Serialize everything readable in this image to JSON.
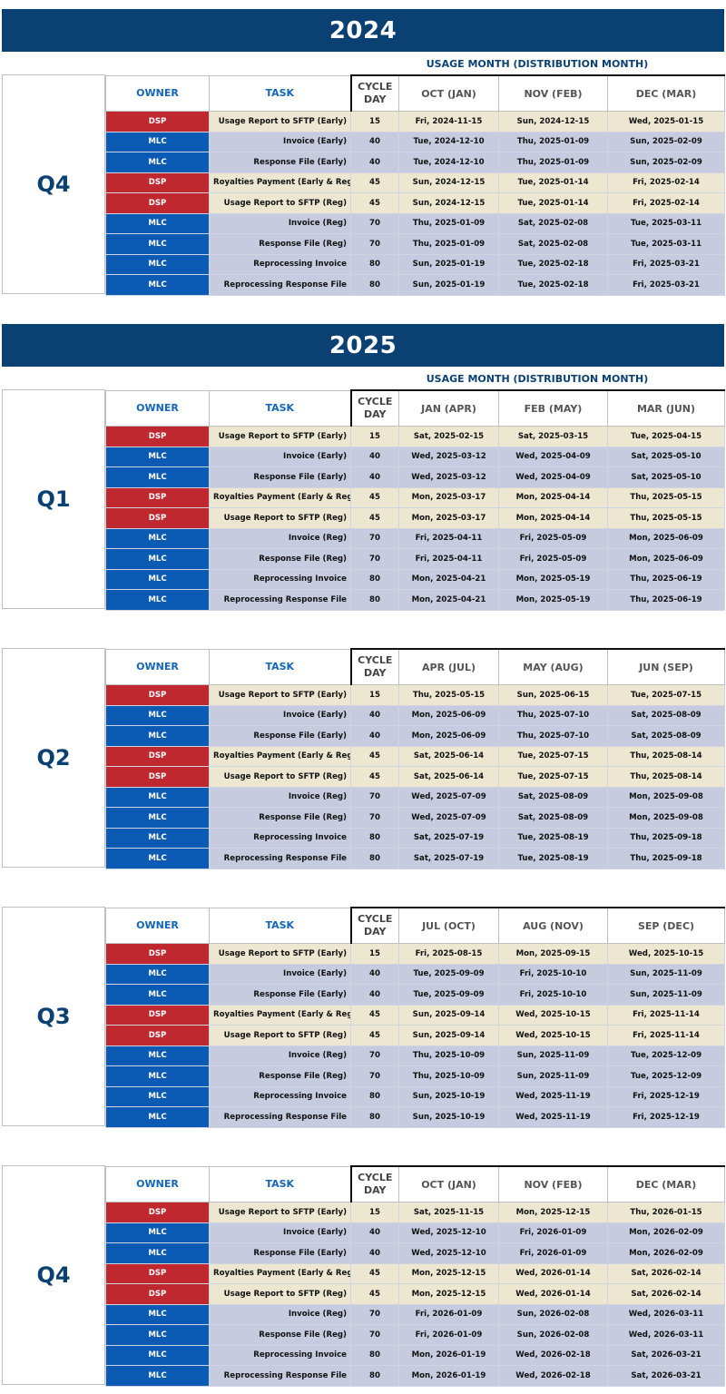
{
  "headers": {
    "owner": "OWNER",
    "task": "TASK",
    "cycle_line1": "CYCLE",
    "cycle_line2": "DAY"
  },
  "usage_label": "USAGE MONTH (DISTRIBUTION MONTH)",
  "colors": {
    "banner": "#0b4172",
    "dsp": "#c0282f",
    "mlc": "#0b5bb5",
    "dsp_row": "#ede7d2",
    "mlc_row": "#c6cbe0"
  },
  "years": [
    {
      "label": "2024"
    },
    {
      "label": "2025"
    }
  ],
  "quarters": [
    {
      "label": "Q4",
      "months": [
        "OCT (JAN)",
        "NOV (FEB)",
        "DEC (MAR)"
      ],
      "rows": [
        {
          "owner": "DSP",
          "task": "Usage Report to SFTP (Early)",
          "cycle": "15",
          "dates": [
            "Fri, 2024-11-15",
            "Sun, 2024-12-15",
            "Wed, 2025-01-15"
          ]
        },
        {
          "owner": "MLC",
          "task": "Invoice (Early)",
          "cycle": "40",
          "dates": [
            "Tue, 2024-12-10",
            "Thu, 2025-01-09",
            "Sun, 2025-02-09"
          ]
        },
        {
          "owner": "MLC",
          "task": "Response File (Early)",
          "cycle": "40",
          "dates": [
            "Tue, 2024-12-10",
            "Thu, 2025-01-09",
            "Sun, 2025-02-09"
          ]
        },
        {
          "owner": "DSP",
          "task": "Royalties Payment (Early & Reg)",
          "cycle": "45",
          "dates": [
            "Sun, 2024-12-15",
            "Tue, 2025-01-14",
            "Fri, 2025-02-14"
          ]
        },
        {
          "owner": "DSP",
          "task": "Usage Report to SFTP (Reg)",
          "cycle": "45",
          "dates": [
            "Sun, 2024-12-15",
            "Tue, 2025-01-14",
            "Fri, 2025-02-14"
          ]
        },
        {
          "owner": "MLC",
          "task": "Invoice (Reg)",
          "cycle": "70",
          "dates": [
            "Thu, 2025-01-09",
            "Sat, 2025-02-08",
            "Tue, 2025-03-11"
          ]
        },
        {
          "owner": "MLC",
          "task": "Response File (Reg)",
          "cycle": "70",
          "dates": [
            "Thu, 2025-01-09",
            "Sat, 2025-02-08",
            "Tue, 2025-03-11"
          ]
        },
        {
          "owner": "MLC",
          "task": "Reprocessing Invoice",
          "cycle": "80",
          "dates": [
            "Sun, 2025-01-19",
            "Tue, 2025-02-18",
            "Fri, 2025-03-21"
          ]
        },
        {
          "owner": "MLC",
          "task": "Reprocessing Response File",
          "cycle": "80",
          "dates": [
            "Sun, 2025-01-19",
            "Tue, 2025-02-18",
            "Fri, 2025-03-21"
          ]
        }
      ]
    },
    {
      "label": "Q1",
      "months": [
        "JAN (APR)",
        "FEB (MAY)",
        "MAR (JUN)"
      ],
      "rows": [
        {
          "owner": "DSP",
          "task": "Usage Report to SFTP (Early)",
          "cycle": "15",
          "dates": [
            "Sat, 2025-02-15",
            "Sat, 2025-03-15",
            "Tue, 2025-04-15"
          ]
        },
        {
          "owner": "MLC",
          "task": "Invoice (Early)",
          "cycle": "40",
          "dates": [
            "Wed, 2025-03-12",
            "Wed, 2025-04-09",
            "Sat, 2025-05-10"
          ]
        },
        {
          "owner": "MLC",
          "task": "Response File (Early)",
          "cycle": "40",
          "dates": [
            "Wed, 2025-03-12",
            "Wed, 2025-04-09",
            "Sat, 2025-05-10"
          ]
        },
        {
          "owner": "DSP",
          "task": "Royalties Payment (Early & Reg)",
          "cycle": "45",
          "dates": [
            "Mon, 2025-03-17",
            "Mon, 2025-04-14",
            "Thu, 2025-05-15"
          ]
        },
        {
          "owner": "DSP",
          "task": "Usage Report to SFTP (Reg)",
          "cycle": "45",
          "dates": [
            "Mon, 2025-03-17",
            "Mon, 2025-04-14",
            "Thu, 2025-05-15"
          ]
        },
        {
          "owner": "MLC",
          "task": "Invoice (Reg)",
          "cycle": "70",
          "dates": [
            "Fri, 2025-04-11",
            "Fri, 2025-05-09",
            "Mon, 2025-06-09"
          ]
        },
        {
          "owner": "MLC",
          "task": "Response File (Reg)",
          "cycle": "70",
          "dates": [
            "Fri, 2025-04-11",
            "Fri, 2025-05-09",
            "Mon, 2025-06-09"
          ]
        },
        {
          "owner": "MLC",
          "task": "Reprocessing Invoice",
          "cycle": "80",
          "dates": [
            "Mon, 2025-04-21",
            "Mon, 2025-05-19",
            "Thu, 2025-06-19"
          ]
        },
        {
          "owner": "MLC",
          "task": "Reprocessing Response File",
          "cycle": "80",
          "dates": [
            "Mon, 2025-04-21",
            "Mon, 2025-05-19",
            "Thu, 2025-06-19"
          ]
        }
      ]
    },
    {
      "label": "Q2",
      "months": [
        "APR (JUL)",
        "MAY (AUG)",
        "JUN (SEP)"
      ],
      "rows": [
        {
          "owner": "DSP",
          "task": "Usage Report to SFTP (Early)",
          "cycle": "15",
          "dates": [
            "Thu, 2025-05-15",
            "Sun, 2025-06-15",
            "Tue, 2025-07-15"
          ]
        },
        {
          "owner": "MLC",
          "task": "Invoice (Early)",
          "cycle": "40",
          "dates": [
            "Mon, 2025-06-09",
            "Thu, 2025-07-10",
            "Sat, 2025-08-09"
          ]
        },
        {
          "owner": "MLC",
          "task": "Response File (Early)",
          "cycle": "40",
          "dates": [
            "Mon, 2025-06-09",
            "Thu, 2025-07-10",
            "Sat, 2025-08-09"
          ]
        },
        {
          "owner": "DSP",
          "task": "Royalties Payment (Early & Reg)",
          "cycle": "45",
          "dates": [
            "Sat, 2025-06-14",
            "Tue, 2025-07-15",
            "Thu, 2025-08-14"
          ]
        },
        {
          "owner": "DSP",
          "task": "Usage Report to SFTP (Reg)",
          "cycle": "45",
          "dates": [
            "Sat, 2025-06-14",
            "Tue, 2025-07-15",
            "Thu, 2025-08-14"
          ]
        },
        {
          "owner": "MLC",
          "task": "Invoice (Reg)",
          "cycle": "70",
          "dates": [
            "Wed, 2025-07-09",
            "Sat, 2025-08-09",
            "Mon, 2025-09-08"
          ]
        },
        {
          "owner": "MLC",
          "task": "Response File (Reg)",
          "cycle": "70",
          "dates": [
            "Wed, 2025-07-09",
            "Sat, 2025-08-09",
            "Mon, 2025-09-08"
          ]
        },
        {
          "owner": "MLC",
          "task": "Reprocessing Invoice",
          "cycle": "80",
          "dates": [
            "Sat, 2025-07-19",
            "Tue, 2025-08-19",
            "Thu, 2025-09-18"
          ]
        },
        {
          "owner": "MLC",
          "task": "Reprocessing Response File",
          "cycle": "80",
          "dates": [
            "Sat, 2025-07-19",
            "Tue, 2025-08-19",
            "Thu, 2025-09-18"
          ]
        }
      ]
    },
    {
      "label": "Q3",
      "months": [
        "JUL (OCT)",
        "AUG (NOV)",
        "SEP (DEC)"
      ],
      "rows": [
        {
          "owner": "DSP",
          "task": "Usage Report to SFTP (Early)",
          "cycle": "15",
          "dates": [
            "Fri, 2025-08-15",
            "Mon, 2025-09-15",
            "Wed, 2025-10-15"
          ]
        },
        {
          "owner": "MLC",
          "task": "Invoice (Early)",
          "cycle": "40",
          "dates": [
            "Tue, 2025-09-09",
            "Fri, 2025-10-10",
            "Sun, 2025-11-09"
          ]
        },
        {
          "owner": "MLC",
          "task": "Response File (Early)",
          "cycle": "40",
          "dates": [
            "Tue, 2025-09-09",
            "Fri, 2025-10-10",
            "Sun, 2025-11-09"
          ]
        },
        {
          "owner": "DSP",
          "task": "Royalties Payment (Early & Reg)",
          "cycle": "45",
          "dates": [
            "Sun, 2025-09-14",
            "Wed, 2025-10-15",
            "Fri, 2025-11-14"
          ]
        },
        {
          "owner": "DSP",
          "task": "Usage Report to SFTP (Reg)",
          "cycle": "45",
          "dates": [
            "Sun, 2025-09-14",
            "Wed, 2025-10-15",
            "Fri, 2025-11-14"
          ]
        },
        {
          "owner": "MLC",
          "task": "Invoice (Reg)",
          "cycle": "70",
          "dates": [
            "Thu, 2025-10-09",
            "Sun, 2025-11-09",
            "Tue, 2025-12-09"
          ]
        },
        {
          "owner": "MLC",
          "task": "Response File (Reg)",
          "cycle": "70",
          "dates": [
            "Thu, 2025-10-09",
            "Sun, 2025-11-09",
            "Tue, 2025-12-09"
          ]
        },
        {
          "owner": "MLC",
          "task": "Reprocessing Invoice",
          "cycle": "80",
          "dates": [
            "Sun, 2025-10-19",
            "Wed, 2025-11-19",
            "Fri, 2025-12-19"
          ]
        },
        {
          "owner": "MLC",
          "task": "Reprocessing Response File",
          "cycle": "80",
          "dates": [
            "Sun, 2025-10-19",
            "Wed, 2025-11-19",
            "Fri, 2025-12-19"
          ]
        }
      ]
    },
    {
      "label": "Q4",
      "months": [
        "OCT (JAN)",
        "NOV (FEB)",
        "DEC (MAR)"
      ],
      "rows": [
        {
          "owner": "DSP",
          "task": "Usage Report to SFTP (Early)",
          "cycle": "15",
          "dates": [
            "Sat, 2025-11-15",
            "Mon, 2025-12-15",
            "Thu, 2026-01-15"
          ]
        },
        {
          "owner": "MLC",
          "task": "Invoice (Early)",
          "cycle": "40",
          "dates": [
            "Wed, 2025-12-10",
            "Fri, 2026-01-09",
            "Mon, 2026-02-09"
          ]
        },
        {
          "owner": "MLC",
          "task": "Response File (Early)",
          "cycle": "40",
          "dates": [
            "Wed, 2025-12-10",
            "Fri, 2026-01-09",
            "Mon, 2026-02-09"
          ]
        },
        {
          "owner": "DSP",
          "task": "Royalties Payment (Early & Reg)",
          "cycle": "45",
          "dates": [
            "Mon, 2025-12-15",
            "Wed, 2026-01-14",
            "Sat, 2026-02-14"
          ]
        },
        {
          "owner": "DSP",
          "task": "Usage Report to SFTP (Reg)",
          "cycle": "45",
          "dates": [
            "Mon, 2025-12-15",
            "Wed, 2026-01-14",
            "Sat, 2026-02-14"
          ]
        },
        {
          "owner": "MLC",
          "task": "Invoice (Reg)",
          "cycle": "70",
          "dates": [
            "Fri, 2026-01-09",
            "Sun, 2026-02-08",
            "Wed, 2026-03-11"
          ]
        },
        {
          "owner": "MLC",
          "task": "Response File (Reg)",
          "cycle": "70",
          "dates": [
            "Fri, 2026-01-09",
            "Sun, 2026-02-08",
            "Wed, 2026-03-11"
          ]
        },
        {
          "owner": "MLC",
          "task": "Reprocessing Invoice",
          "cycle": "80",
          "dates": [
            "Mon, 2026-01-19",
            "Wed, 2026-02-18",
            "Sat, 2026-03-21"
          ]
        },
        {
          "owner": "MLC",
          "task": "Reprocessing Response File",
          "cycle": "80",
          "dates": [
            "Mon, 2026-01-19",
            "Wed, 2026-02-18",
            "Sat, 2026-03-21"
          ]
        }
      ]
    }
  ]
}
